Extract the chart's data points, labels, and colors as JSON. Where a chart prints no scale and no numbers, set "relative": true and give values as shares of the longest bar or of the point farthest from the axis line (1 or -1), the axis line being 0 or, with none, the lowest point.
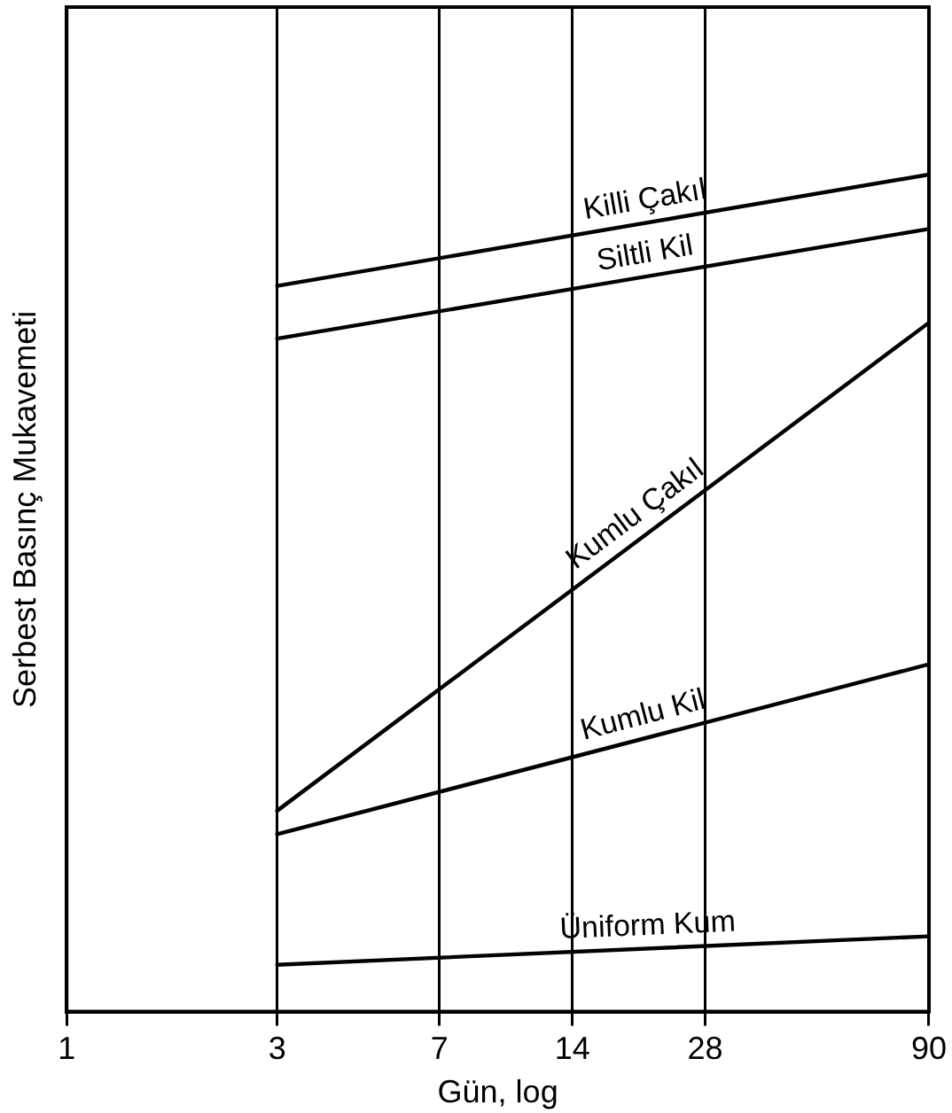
{
  "chart_data": {
    "type": "line",
    "relative": true,
    "xlabel": "Gün, log",
    "ylabel": "Serbest Basınç Mukavemeti",
    "log": "x",
    "xlim": [
      1,
      90
    ],
    "xticks": [
      1,
      3,
      7,
      14,
      28,
      90
    ],
    "grid": "x",
    "legend": false,
    "marker": "none",
    "line_style": "solid",
    "x": [
      3,
      90
    ],
    "series": [
      {
        "name": "Killi Çakıl",
        "color": "#000000",
        "values": [
          0.867,
          1
        ]
      },
      {
        "name": "Siltli Kil",
        "color": "#000000",
        "values": [
          0.804,
          0.935
        ]
      },
      {
        "name": "Kumlu Çakıl",
        "color": "#000000",
        "values": [
          0.24,
          0.823
        ]
      },
      {
        "name": "Kumlu Kil",
        "color": "#000000",
        "values": [
          0.212,
          0.415
        ]
      },
      {
        "name": "Üniform Kum",
        "color": "#000000",
        "values": [
          0.056,
          0.09
        ]
      }
    ]
  }
}
